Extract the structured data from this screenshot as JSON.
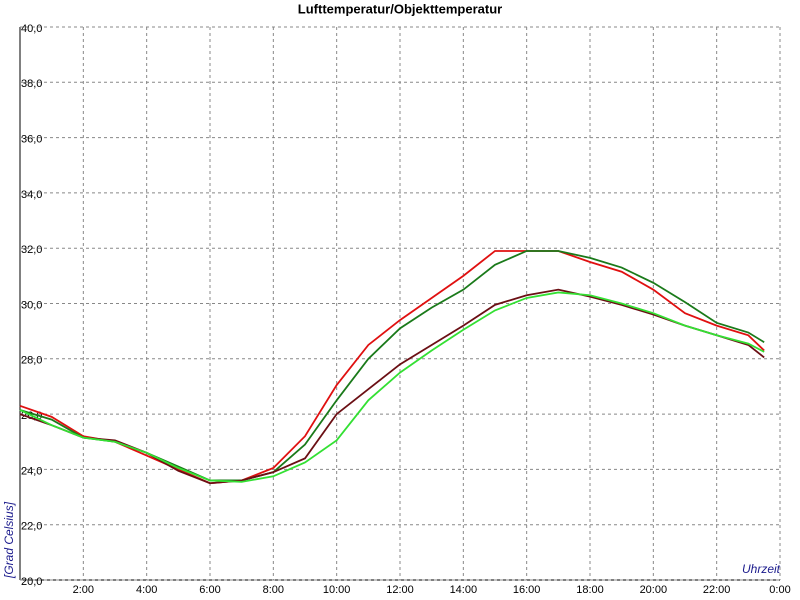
{
  "chart_data": {
    "type": "line",
    "title": "Lufttemperatur/Objekttemperatur",
    "y_label": "[Grad Celsius]",
    "x_label": "Uhrzeit",
    "x": [
      0,
      1,
      2,
      3,
      4,
      5,
      6,
      7,
      8,
      9,
      10,
      11,
      12,
      13,
      14,
      15,
      16,
      17,
      18,
      19,
      20,
      21,
      22,
      23,
      23.5
    ],
    "series": [
      {
        "color": "#e01010",
        "values": [
          26.3,
          25.9,
          25.2,
          25.0,
          24.5,
          24.0,
          23.5,
          23.6,
          24.05,
          25.2,
          27.05,
          28.5,
          29.4,
          30.2,
          31.0,
          31.9,
          31.9,
          31.9,
          31.5,
          31.15,
          30.5,
          29.65,
          29.2,
          28.85,
          28.3
        ]
      },
      {
        "color": "#1a7a1a",
        "values": [
          26.15,
          25.8,
          25.15,
          25.0,
          24.6,
          24.1,
          23.6,
          23.6,
          23.9,
          24.9,
          26.5,
          28.0,
          29.1,
          29.85,
          30.5,
          31.4,
          31.9,
          31.9,
          31.65,
          31.3,
          30.75,
          30.05,
          29.3,
          28.95,
          28.6
        ]
      },
      {
        "color": "#6b0f14",
        "values": [
          26.0,
          25.6,
          25.15,
          25.05,
          24.6,
          23.95,
          23.5,
          23.6,
          23.9,
          24.4,
          26.0,
          26.9,
          27.8,
          28.5,
          29.2,
          29.95,
          30.3,
          30.5,
          30.25,
          29.95,
          29.6,
          29.2,
          28.85,
          28.5,
          28.05
        ]
      },
      {
        "color": "#33e033",
        "values": [
          26.15,
          25.6,
          25.15,
          25.0,
          24.6,
          24.05,
          23.6,
          23.55,
          23.75,
          24.25,
          25.05,
          26.5,
          27.5,
          28.3,
          29.05,
          29.75,
          30.2,
          30.4,
          30.3,
          30.0,
          29.65,
          29.2,
          28.85,
          28.55,
          28.25
        ]
      }
    ],
    "xlim": [
      0,
      24
    ],
    "xticks": [
      {
        "value": 2,
        "label": "2:00"
      },
      {
        "value": 4,
        "label": "4:00"
      },
      {
        "value": 6,
        "label": "6:00"
      },
      {
        "value": 8,
        "label": "8:00"
      },
      {
        "value": 10,
        "label": "10:00"
      },
      {
        "value": 12,
        "label": "12:00"
      },
      {
        "value": 14,
        "label": "14:00"
      },
      {
        "value": 16,
        "label": "16:00"
      },
      {
        "value": 18,
        "label": "18:00"
      },
      {
        "value": 20,
        "label": "20:00"
      },
      {
        "value": 22,
        "label": "22:00"
      },
      {
        "value": 24,
        "label": "0:00"
      }
    ],
    "ylim": [
      20,
      40
    ],
    "yticks": [
      {
        "value": 20,
        "label": "20,0"
      },
      {
        "value": 22,
        "label": "22,0"
      },
      {
        "value": 24,
        "label": "24,0"
      },
      {
        "value": 26,
        "label": "26,0"
      },
      {
        "value": 28,
        "label": "28,0"
      },
      {
        "value": 30,
        "label": "30,0"
      },
      {
        "value": 32,
        "label": "32,0"
      },
      {
        "value": 34,
        "label": "34,0"
      },
      {
        "value": 36,
        "label": "36,0"
      },
      {
        "value": 38,
        "label": "38,0"
      },
      {
        "value": 40,
        "label": "40,0"
      }
    ],
    "grid": true
  }
}
